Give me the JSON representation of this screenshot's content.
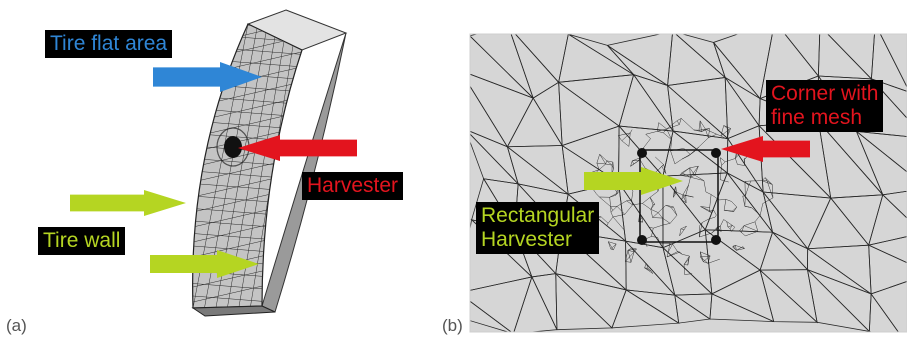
{
  "panels": [
    {
      "label": "(a)"
    },
    {
      "label": "(b)"
    }
  ],
  "annotations": {
    "tire_flat_area": "Tire flat area",
    "harvester": "Harvester",
    "tire_wall": "Tire wall",
    "corner_line1": "Corner with",
    "corner_line2": "fine mesh",
    "rect_line1": "Rectangular",
    "rect_line2": "Harvester"
  },
  "colors": {
    "blue_arrow": "#2f86d6",
    "red_arrow": "#e3141e",
    "green_arrow": "#b5d522",
    "label_background": "#000000",
    "mesh_face": "#bdbdbd",
    "mesh_background": "#d6d6d6"
  }
}
